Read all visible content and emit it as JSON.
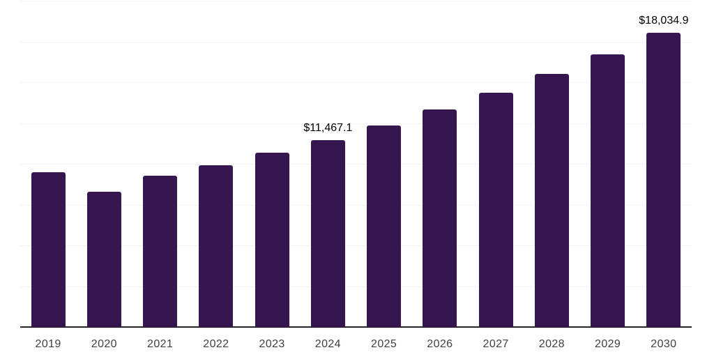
{
  "chart_data": {
    "type": "bar",
    "title": "",
    "xlabel": "",
    "ylabel": "",
    "categories": [
      "2019",
      "2020",
      "2021",
      "2022",
      "2023",
      "2024",
      "2025",
      "2026",
      "2027",
      "2028",
      "2029",
      "2030"
    ],
    "values": [
      9490,
      8290,
      9270,
      9920,
      10690,
      11467.1,
      12360,
      13330,
      14370,
      15500,
      16710,
      18034.9
    ],
    "data_labels": [
      "",
      "",
      "",
      "",
      "",
      "$11,467.1",
      "",
      "",
      "",
      "",
      "",
      "$18,034.9"
    ],
    "ylim": [
      0,
      20000
    ],
    "grid_step": 2500,
    "grid": true,
    "legend": "none",
    "colors": {
      "bar": "#37154f",
      "axis": "#262626",
      "gridline": "#f2f2f2",
      "tick_label": "#404040",
      "data_label": "#000000",
      "background": "#ffffff"
    }
  }
}
